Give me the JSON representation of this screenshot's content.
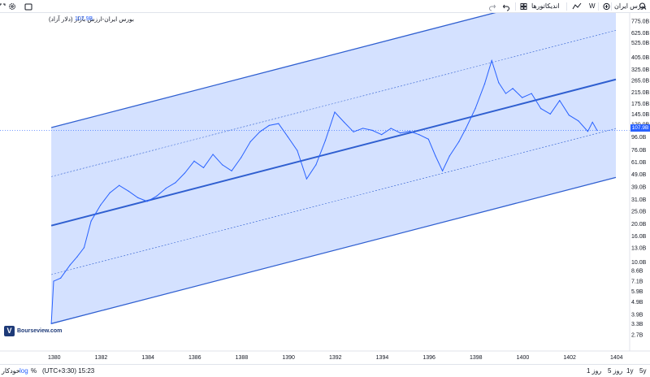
{
  "toolbar": {
    "symbol": "بورس ایران",
    "interval": "W",
    "indicators_label": "اندیکاتورها"
  },
  "legend": {
    "title": "بورس ایران-ارزش بازار (دلار آزاد)",
    "value": "107.9B"
  },
  "price_axis": {
    "current_price": "107.9B",
    "ticks": [
      "775.0B",
      "625.0B",
      "525.0B",
      "405.0B",
      "325.0B",
      "265.0B",
      "215.0B",
      "175.0B",
      "145.0B",
      "120.0B",
      "96.0B",
      "76.0B",
      "61.0B",
      "49.0B",
      "39.0B",
      "31.0B",
      "25.0B",
      "20.0B",
      "16.0B",
      "13.0B",
      "10.0B",
      "8.6B",
      "7.1B",
      "5.9B",
      "4.9B",
      "3.9B",
      "3.3B",
      "2.7B"
    ]
  },
  "time_axis": {
    "ticks": [
      "1380",
      "1382",
      "1384",
      "1386",
      "1388",
      "1390",
      "1392",
      "1394",
      "1396",
      "1398",
      "1400",
      "1402",
      "1404"
    ]
  },
  "watermark": {
    "text": "Bourseview.com",
    "logo": "V"
  },
  "bottombar": {
    "timezone": "(UTC+3:30) 15:23",
    "ranges": [
      "5y",
      "1y",
      "5 روز",
      "1 روز"
    ],
    "percent": "%",
    "log": "log",
    "auto": "خودکار"
  },
  "colors": {
    "line": "#2962ff",
    "channel_fill": "#cddcff",
    "channel_border": "#2f5fd0",
    "background": "#ffffff"
  },
  "icons": [
    "search-icon",
    "plus-circle-icon",
    "compare-icon",
    "undo-icon",
    "redo-icon",
    "layout-icon",
    "gear-icon",
    "fullscreen-icon",
    "camera-icon"
  ],
  "chart_data": {
    "type": "line",
    "title": "بورس ایران-ارزش بازار (دلار آزاد)",
    "y_scale": "log",
    "ylim": [
      "2.7B",
      "775.0B"
    ],
    "x_range": [
      1379,
      1404
    ],
    "regression_channel": true,
    "series": [
      {
        "values_B": [
          [
            1379.9,
            3.3
          ],
          [
            1380.0,
            7.1
          ],
          [
            1380.3,
            7.5
          ],
          [
            1380.7,
            9.5
          ],
          [
            1381.0,
            11.0
          ],
          [
            1381.3,
            13.0
          ],
          [
            1381.6,
            21.0
          ],
          [
            1382.0,
            28.0
          ],
          [
            1382.4,
            35.0
          ],
          [
            1382.8,
            40.0
          ],
          [
            1383.2,
            36.0
          ],
          [
            1383.6,
            32.0
          ],
          [
            1384.0,
            30.0
          ],
          [
            1384.4,
            33.0
          ],
          [
            1384.8,
            38.0
          ],
          [
            1385.2,
            42.0
          ],
          [
            1385.6,
            50.0
          ],
          [
            1386.0,
            62.0
          ],
          [
            1386.4,
            55.0
          ],
          [
            1386.8,
            70.0
          ],
          [
            1387.2,
            58.0
          ],
          [
            1387.6,
            52.0
          ],
          [
            1388.0,
            66.0
          ],
          [
            1388.4,
            88.0
          ],
          [
            1388.8,
            105.0
          ],
          [
            1389.2,
            118.0
          ],
          [
            1389.6,
            122.0
          ],
          [
            1390.0,
            96.0
          ],
          [
            1390.4,
            75.0
          ],
          [
            1390.8,
            45.0
          ],
          [
            1391.2,
            58.0
          ],
          [
            1391.6,
            90.0
          ],
          [
            1392.0,
            150.0
          ],
          [
            1392.4,
            125.0
          ],
          [
            1392.8,
            105.0
          ],
          [
            1393.2,
            112.0
          ],
          [
            1393.6,
            108.0
          ],
          [
            1394.0,
            100.0
          ],
          [
            1394.4,
            112.0
          ],
          [
            1394.8,
            103.0
          ],
          [
            1395.2,
            106.0
          ],
          [
            1395.6,
            100.0
          ],
          [
            1396.0,
            92.0
          ],
          [
            1396.3,
            68.0
          ],
          [
            1396.6,
            52.0
          ],
          [
            1396.9,
            68.0
          ],
          [
            1397.3,
            88.0
          ],
          [
            1397.6,
            112.0
          ],
          [
            1398.0,
            160.0
          ],
          [
            1398.4,
            250.0
          ],
          [
            1398.7,
            380.0
          ],
          [
            1399.0,
            255.0
          ],
          [
            1399.3,
            210.0
          ],
          [
            1399.6,
            230.0
          ],
          [
            1400.0,
            195.0
          ],
          [
            1400.4,
            210.0
          ],
          [
            1400.8,
            160.0
          ],
          [
            1401.2,
            145.0
          ],
          [
            1401.6,
            185.0
          ],
          [
            1402.0,
            142.0
          ],
          [
            1402.4,
            128.0
          ],
          [
            1402.8,
            106.0
          ],
          [
            1403.0,
            125.0
          ],
          [
            1403.2,
            107.9
          ]
        ]
      }
    ]
  }
}
